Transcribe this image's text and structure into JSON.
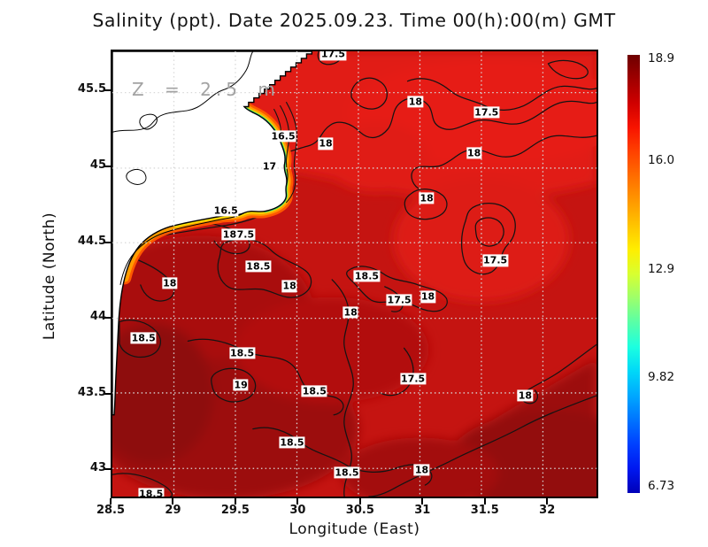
{
  "title": "Salinity (ppt). Date 2025.09.23. Time 00(h):00(m) GMT",
  "plot": {
    "depth_label": "Z = 2.5 m"
  },
  "colorbar": {
    "tick_labels": [
      "18.9",
      "16.0",
      "12.9",
      "9.82",
      "6.73"
    ],
    "range": [
      6.53,
      19.0
    ],
    "gradient": [
      "#6e0000",
      "#a00000",
      "#d00000",
      "#f81400",
      "#ff4200",
      "#ff6e00",
      "#ff9800",
      "#ffc400",
      "#ffee00",
      "#d8ff30",
      "#9cff6c",
      "#58ffa8",
      "#1cffe0",
      "#00d8f8",
      "#00a8ff",
      "#0074ff",
      "#0040ff",
      "#0018f0",
      "#0000b8"
    ]
  },
  "chart_data": {
    "type": "heatmap",
    "variable": "Salinity",
    "units": "ppt",
    "date": "2025.09.23",
    "time_gmt": "00(h):00(m)",
    "depth_label": "Z = 2.5 m",
    "depth_m": 2.5,
    "x_axis": {
      "label": "Longitude (East)",
      "range": [
        28.5,
        32.41
      ],
      "ticks": [
        "28.5",
        "29",
        "29.5",
        "30",
        "30.5",
        "31",
        "31.5",
        "32"
      ]
    },
    "y_axis": {
      "label": "Latitude (North)",
      "range": [
        42.81,
        45.77
      ],
      "ticks": [
        "45.5",
        "45",
        "44.5",
        "44",
        "43.5",
        "43"
      ]
    },
    "colorbar_scale": {
      "min": 6.73,
      "max": 18.9,
      "ticks": [
        18.9,
        16.0,
        12.9,
        9.82,
        6.73
      ],
      "colormap": "jet: dark red (high salinity) at top to dark blue (low) at bottom"
    },
    "labeled_contour_levels": [
      16.5,
      17,
      17.5,
      18,
      18.5,
      19
    ],
    "contour_labels": [
      {
        "value": "17.5",
        "lon": 30.27,
        "lat": 45.75
      },
      {
        "value": "18",
        "lon": 30.93,
        "lat": 45.44
      },
      {
        "value": "17.5",
        "lon": 31.5,
        "lat": 45.37
      },
      {
        "value": "18",
        "lon": 30.21,
        "lat": 45.16
      },
      {
        "value": "18",
        "lon": 31.4,
        "lat": 45.1
      },
      {
        "value": "16.5",
        "lon": 29.87,
        "lat": 45.21
      },
      {
        "value": "17",
        "lon": 29.76,
        "lat": 45.01
      },
      {
        "value": "16.5",
        "lon": 29.41,
        "lat": 44.72
      },
      {
        "value": "17.5",
        "lon": 29.54,
        "lat": 44.56
      },
      {
        "value": "18",
        "lon": 29.44,
        "lat": 44.56
      },
      {
        "value": "18.5",
        "lon": 29.67,
        "lat": 44.35
      },
      {
        "value": "18",
        "lon": 28.96,
        "lat": 44.24
      },
      {
        "value": "18",
        "lon": 29.92,
        "lat": 44.22
      },
      {
        "value": "18",
        "lon": 30.41,
        "lat": 44.05
      },
      {
        "value": "18.5",
        "lon": 28.75,
        "lat": 43.88
      },
      {
        "value": "18.5",
        "lon": 29.54,
        "lat": 43.78
      },
      {
        "value": "19",
        "lon": 29.53,
        "lat": 43.57
      },
      {
        "value": "18.5",
        "lon": 30.12,
        "lat": 43.53
      },
      {
        "value": "18.5",
        "lon": 30.54,
        "lat": 44.29
      },
      {
        "value": "17.5",
        "lon": 30.8,
        "lat": 44.13
      },
      {
        "value": "18",
        "lon": 31.03,
        "lat": 44.15
      },
      {
        "value": "17.5",
        "lon": 30.91,
        "lat": 43.61
      },
      {
        "value": "17.5",
        "lon": 31.57,
        "lat": 44.39
      },
      {
        "value": "18",
        "lon": 31.81,
        "lat": 43.5
      },
      {
        "value": "18",
        "lon": 31.02,
        "lat": 44.8
      },
      {
        "value": "18",
        "lon": 30.98,
        "lat": 43.01
      },
      {
        "value": "18.5",
        "lon": 29.94,
        "lat": 43.19
      },
      {
        "value": "18.5",
        "lon": 30.38,
        "lat": 42.99
      },
      {
        "value": "18.5",
        "lon": 28.81,
        "lat": 42.85
      }
    ],
    "visual_notes": "White masked land with black coastline occupies the upper-left; a narrow cyan/green/yellow/orange low-salinity band with dense contours hugs the coast; open sea is red (~17.5-19 ppt), darkest red toward the south-west."
  }
}
